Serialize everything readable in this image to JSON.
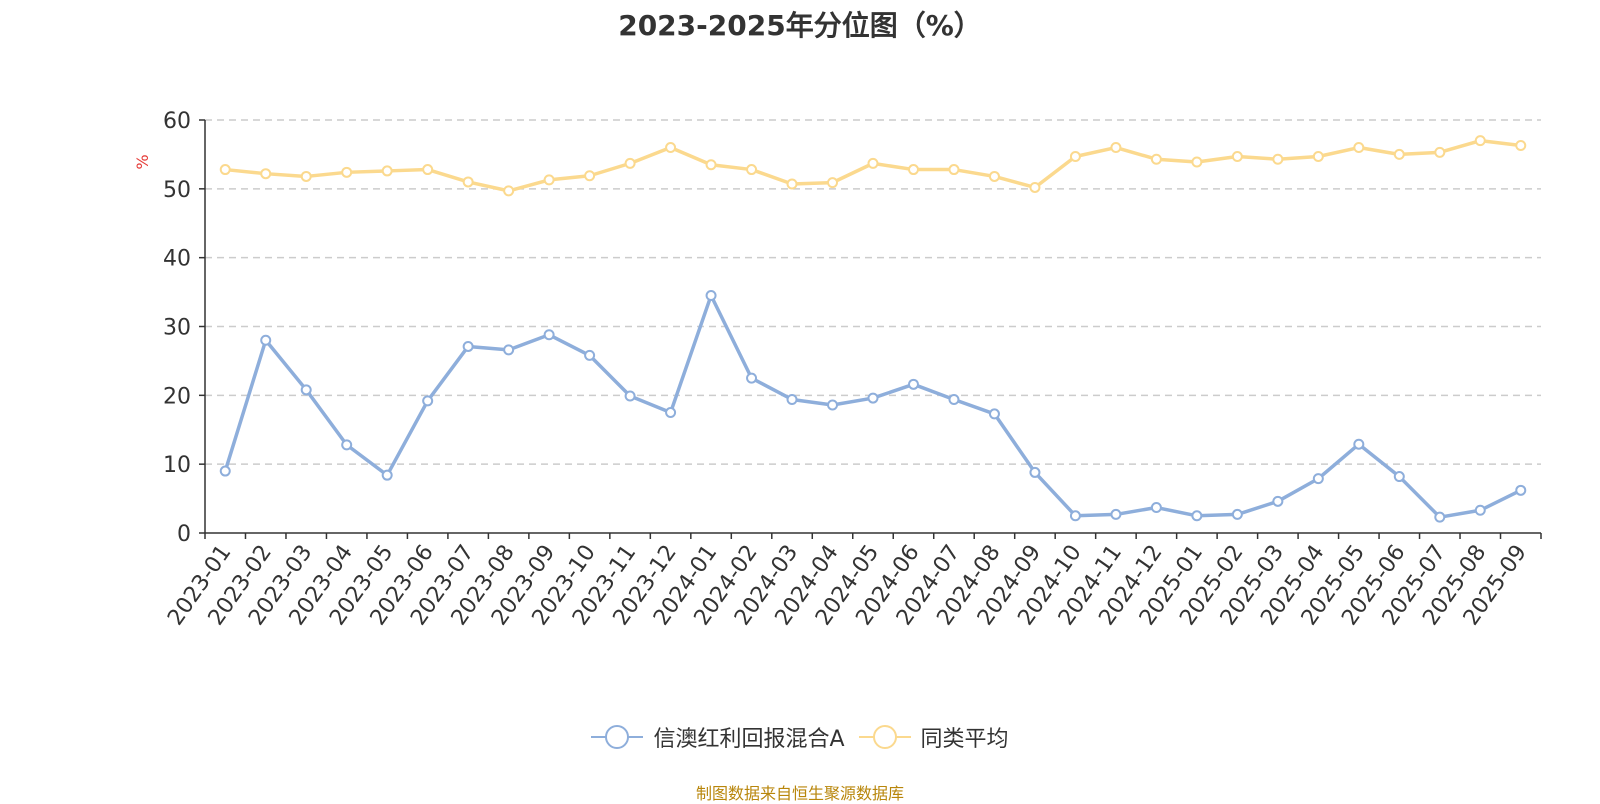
{
  "chart_data": {
    "type": "line",
    "title": "2023-2025年分位图（%）",
    "ylabel": "%",
    "ylim": [
      0,
      60
    ],
    "yticks": [
      0,
      10,
      20,
      30,
      40,
      50,
      60
    ],
    "grid": true,
    "legend_position": "bottom",
    "categories": [
      "2023-01",
      "2023-02",
      "2023-03",
      "2023-04",
      "2023-05",
      "2023-06",
      "2023-07",
      "2023-08",
      "2023-09",
      "2023-10",
      "2023-11",
      "2023-12",
      "2024-01",
      "2024-02",
      "2024-03",
      "2024-04",
      "2024-05",
      "2024-06",
      "2024-07",
      "2024-08",
      "2024-09",
      "2024-10",
      "2024-11",
      "2024-12",
      "2025-01",
      "2025-02",
      "2025-03",
      "2025-04",
      "2025-05",
      "2025-06",
      "2025-07",
      "2025-08",
      "2025-09"
    ],
    "series": [
      {
        "name": "信澳红利回报混合A",
        "color": "#8eaedb",
        "values": [
          9.0,
          28.0,
          20.8,
          12.8,
          8.4,
          19.2,
          27.1,
          26.6,
          28.8,
          25.8,
          19.9,
          17.5,
          34.5,
          22.5,
          19.4,
          18.6,
          19.6,
          21.6,
          19.4,
          17.3,
          8.8,
          2.5,
          2.7,
          3.7,
          2.5,
          2.7,
          4.6,
          7.9,
          12.9,
          8.2,
          2.3,
          3.3,
          6.2
        ]
      },
      {
        "name": "同类平均",
        "color": "#fbd98e",
        "values": [
          52.8,
          52.2,
          51.8,
          52.4,
          52.6,
          52.8,
          51.0,
          49.7,
          51.3,
          51.9,
          53.7,
          56.0,
          53.5,
          52.8,
          50.7,
          50.9,
          53.7,
          52.8,
          52.8,
          51.8,
          50.2,
          54.7,
          56.0,
          54.3,
          53.9,
          54.7,
          54.3,
          54.7,
          56.0,
          55.0,
          55.3,
          57.0,
          56.3
        ]
      }
    ]
  },
  "source_text": "制图数据来自恒生聚源数据库"
}
